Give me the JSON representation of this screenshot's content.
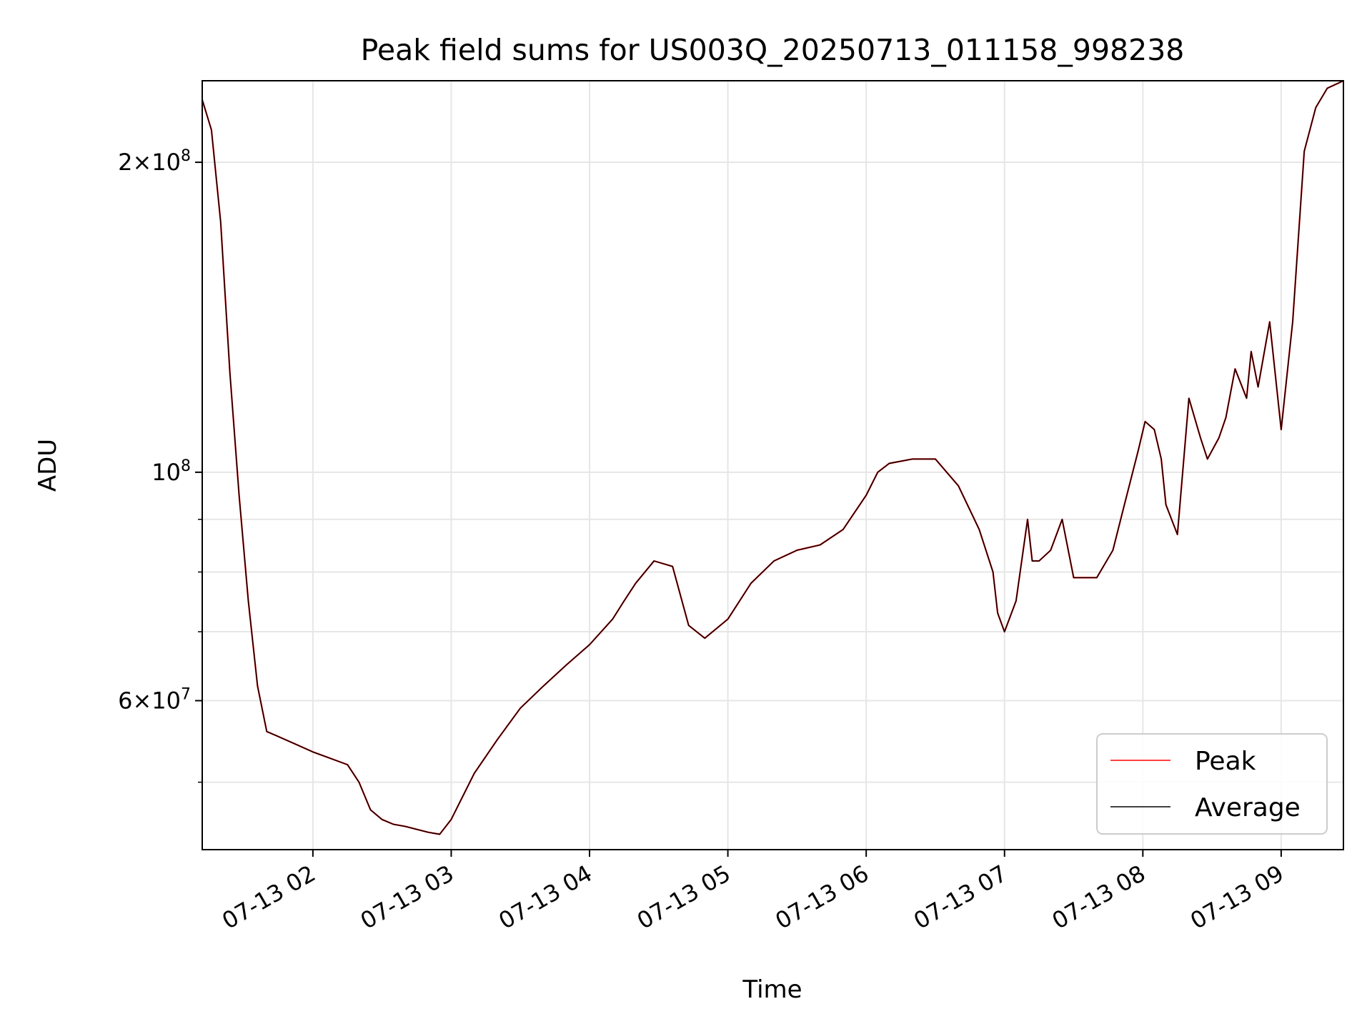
{
  "chart_data": {
    "type": "line",
    "title": "Peak field sums for US003Q_20250713_011158_998238",
    "xlabel": "Time",
    "ylabel": "ADU",
    "y_scale": "log",
    "ylim": [
      43000000,
      240000000
    ],
    "xlim": [
      "2025-07-13T01:12:00",
      "2025-07-13T09:27:00"
    ],
    "grid": true,
    "legend_position": "lower right",
    "x_tick_labels": [
      "07-13 02",
      "07-13 03",
      "07-13 04",
      "07-13 05",
      "07-13 06",
      "07-13 07",
      "07-13 08",
      "07-13 09"
    ],
    "x_ticks": [
      "2025-07-13T02:00:00",
      "2025-07-13T03:00:00",
      "2025-07-13T04:00:00",
      "2025-07-13T05:00:00",
      "2025-07-13T06:00:00",
      "2025-07-13T07:00:00",
      "2025-07-13T08:00:00",
      "2025-07-13T09:00:00"
    ],
    "y_major_ticks": [
      {
        "value": 60000000,
        "mantissa": "6",
        "exponent": "7"
      },
      {
        "value": 100000000,
        "mantissa": "",
        "exponent": "8"
      },
      {
        "value": 200000000,
        "mantissa": "2",
        "exponent": "8"
      }
    ],
    "y_minor_ticks": [
      50000000,
      70000000,
      80000000,
      90000000
    ],
    "series": [
      {
        "name": "Peak",
        "color": "#ff0000",
        "noise_note": "",
        "x": [
          "2025-07-13T01:12:00",
          "2025-07-13T01:16:00",
          "2025-07-13T01:20:00",
          "2025-07-13T01:24:00",
          "2025-07-13T01:28:00",
          "2025-07-13T01:32:00",
          "2025-07-13T01:36:00",
          "2025-07-13T01:40:00",
          "2025-07-13T01:44:00",
          "2025-07-13T01:48:00",
          "2025-07-13T01:52:00",
          "2025-07-13T01:56:00",
          "2025-07-13T02:00:00",
          "2025-07-13T02:05:00",
          "2025-07-13T02:10:00",
          "2025-07-13T02:15:00",
          "2025-07-13T02:20:00",
          "2025-07-13T02:25:00",
          "2025-07-13T02:30:00",
          "2025-07-13T02:35:00",
          "2025-07-13T02:40:00",
          "2025-07-13T02:45:00",
          "2025-07-13T02:50:00",
          "2025-07-13T02:55:00",
          "2025-07-13T03:00:00",
          "2025-07-13T03:10:00",
          "2025-07-13T03:20:00",
          "2025-07-13T03:30:00",
          "2025-07-13T03:40:00",
          "2025-07-13T03:50:00",
          "2025-07-13T04:00:00",
          "2025-07-13T04:10:00",
          "2025-07-13T04:15:00",
          "2025-07-13T04:20:00",
          "2025-07-13T04:28:00",
          "2025-07-13T04:36:00",
          "2025-07-13T04:43:00",
          "2025-07-13T04:50:00",
          "2025-07-13T05:00:00",
          "2025-07-13T05:10:00",
          "2025-07-13T05:20:00",
          "2025-07-13T05:30:00",
          "2025-07-13T05:40:00",
          "2025-07-13T05:50:00",
          "2025-07-13T06:00:00",
          "2025-07-13T06:05:00",
          "2025-07-13T06:10:00",
          "2025-07-13T06:20:00",
          "2025-07-13T06:30:00",
          "2025-07-13T06:40:00",
          "2025-07-13T06:49:00",
          "2025-07-13T06:55:00",
          "2025-07-13T06:57:00",
          "2025-07-13T07:00:00",
          "2025-07-13T07:05:00",
          "2025-07-13T07:10:00",
          "2025-07-13T07:12:00",
          "2025-07-13T07:15:00",
          "2025-07-13T07:20:00",
          "2025-07-13T07:25:00",
          "2025-07-13T07:30:00",
          "2025-07-13T07:40:00",
          "2025-07-13T07:47:00",
          "2025-07-13T07:52:00",
          "2025-07-13T07:58:00",
          "2025-07-13T08:01:00",
          "2025-07-13T08:05:00",
          "2025-07-13T08:08:00",
          "2025-07-13T08:10:00",
          "2025-07-13T08:15:00",
          "2025-07-13T08:20:00",
          "2025-07-13T08:25:00",
          "2025-07-13T08:28:00",
          "2025-07-13T08:33:00",
          "2025-07-13T08:36:00",
          "2025-07-13T08:40:00",
          "2025-07-13T08:45:00",
          "2025-07-13T08:47:00",
          "2025-07-13T08:50:00",
          "2025-07-13T08:55:00",
          "2025-07-13T09:00:00",
          "2025-07-13T09:05:00",
          "2025-07-13T09:10:00",
          "2025-07-13T09:15:00",
          "2025-07-13T09:20:00",
          "2025-07-13T09:27:00"
        ],
        "y": [
          230000000,
          215000000,
          175000000,
          125000000,
          95000000,
          75000000,
          62000000,
          56000000,
          55500000,
          55000000,
          54500000,
          54000000,
          53500000,
          53000000,
          52500000,
          52000000,
          50000000,
          47000000,
          46000000,
          45500000,
          45300000,
          45000000,
          44700000,
          44500000,
          46000000,
          51000000,
          55000000,
          59000000,
          62000000,
          65000000,
          68000000,
          72000000,
          75000000,
          78000000,
          82000000,
          81000000,
          71000000,
          69000000,
          72000000,
          78000000,
          82000000,
          84000000,
          85000000,
          88000000,
          95000000,
          100000000,
          102000000,
          103000000,
          103000000,
          97000000,
          88000000,
          80000000,
          73000000,
          70000000,
          75000000,
          90000000,
          82000000,
          82000000,
          84000000,
          90000000,
          79000000,
          79000000,
          84000000,
          93000000,
          105000000,
          112000000,
          110000000,
          103000000,
          93000000,
          87000000,
          118000000,
          108000000,
          103000000,
          108000000,
          113000000,
          126000000,
          118000000,
          131000000,
          121000000,
          140000000,
          110000000,
          140000000,
          205000000,
          226000000,
          236000000,
          240000000
        ]
      },
      {
        "name": "Average",
        "color": "#000000",
        "x": [
          "2025-07-13T01:12:00",
          "2025-07-13T01:16:00",
          "2025-07-13T01:20:00",
          "2025-07-13T01:24:00",
          "2025-07-13T01:28:00",
          "2025-07-13T01:32:00",
          "2025-07-13T01:36:00",
          "2025-07-13T01:40:00",
          "2025-07-13T01:44:00",
          "2025-07-13T01:48:00",
          "2025-07-13T01:52:00",
          "2025-07-13T01:56:00",
          "2025-07-13T02:00:00",
          "2025-07-13T02:05:00",
          "2025-07-13T02:10:00",
          "2025-07-13T02:15:00",
          "2025-07-13T02:20:00",
          "2025-07-13T02:25:00",
          "2025-07-13T02:30:00",
          "2025-07-13T02:35:00",
          "2025-07-13T02:40:00",
          "2025-07-13T02:45:00",
          "2025-07-13T02:50:00",
          "2025-07-13T02:55:00",
          "2025-07-13T03:00:00",
          "2025-07-13T03:10:00",
          "2025-07-13T03:20:00",
          "2025-07-13T03:30:00",
          "2025-07-13T03:40:00",
          "2025-07-13T03:50:00",
          "2025-07-13T04:00:00",
          "2025-07-13T04:10:00",
          "2025-07-13T04:15:00",
          "2025-07-13T04:20:00",
          "2025-07-13T04:28:00",
          "2025-07-13T04:36:00",
          "2025-07-13T04:43:00",
          "2025-07-13T04:50:00",
          "2025-07-13T05:00:00",
          "2025-07-13T05:10:00",
          "2025-07-13T05:20:00",
          "2025-07-13T05:30:00",
          "2025-07-13T05:40:00",
          "2025-07-13T05:50:00",
          "2025-07-13T06:00:00",
          "2025-07-13T06:05:00",
          "2025-07-13T06:10:00",
          "2025-07-13T06:20:00",
          "2025-07-13T06:30:00",
          "2025-07-13T06:40:00",
          "2025-07-13T06:49:00",
          "2025-07-13T06:55:00",
          "2025-07-13T06:57:00",
          "2025-07-13T07:00:00",
          "2025-07-13T07:05:00",
          "2025-07-13T07:10:00",
          "2025-07-13T07:12:00",
          "2025-07-13T07:15:00",
          "2025-07-13T07:20:00",
          "2025-07-13T07:25:00",
          "2025-07-13T07:30:00",
          "2025-07-13T07:40:00",
          "2025-07-13T07:47:00",
          "2025-07-13T07:52:00",
          "2025-07-13T07:58:00",
          "2025-07-13T08:01:00",
          "2025-07-13T08:05:00",
          "2025-07-13T08:08:00",
          "2025-07-13T08:10:00",
          "2025-07-13T08:15:00",
          "2025-07-13T08:20:00",
          "2025-07-13T08:25:00",
          "2025-07-13T08:28:00",
          "2025-07-13T08:33:00",
          "2025-07-13T08:36:00",
          "2025-07-13T08:40:00",
          "2025-07-13T08:45:00",
          "2025-07-13T08:47:00",
          "2025-07-13T08:50:00",
          "2025-07-13T08:55:00",
          "2025-07-13T09:00:00",
          "2025-07-13T09:05:00",
          "2025-07-13T09:10:00",
          "2025-07-13T09:15:00",
          "2025-07-13T09:20:00",
          "2025-07-13T09:27:00"
        ],
        "y": [
          230000000,
          215000000,
          175000000,
          125000000,
          95000000,
          75000000,
          62000000,
          56000000,
          55500000,
          55000000,
          54500000,
          54000000,
          53500000,
          53000000,
          52500000,
          52000000,
          50000000,
          47000000,
          46000000,
          45500000,
          45300000,
          45000000,
          44700000,
          44500000,
          46000000,
          51000000,
          55000000,
          59000000,
          62000000,
          65000000,
          68000000,
          72000000,
          75000000,
          78000000,
          82000000,
          81000000,
          71000000,
          69000000,
          72000000,
          78000000,
          82000000,
          84000000,
          85000000,
          88000000,
          95000000,
          100000000,
          102000000,
          103000000,
          103000000,
          97000000,
          88000000,
          80000000,
          73000000,
          70000000,
          75000000,
          90000000,
          82000000,
          82000000,
          84000000,
          90000000,
          79000000,
          79000000,
          84000000,
          93000000,
          105000000,
          112000000,
          110000000,
          103000000,
          93000000,
          87000000,
          118000000,
          108000000,
          103000000,
          108000000,
          113000000,
          126000000,
          118000000,
          131000000,
          121000000,
          140000000,
          110000000,
          140000000,
          205000000,
          226000000,
          236000000,
          240000000
        ]
      }
    ]
  }
}
